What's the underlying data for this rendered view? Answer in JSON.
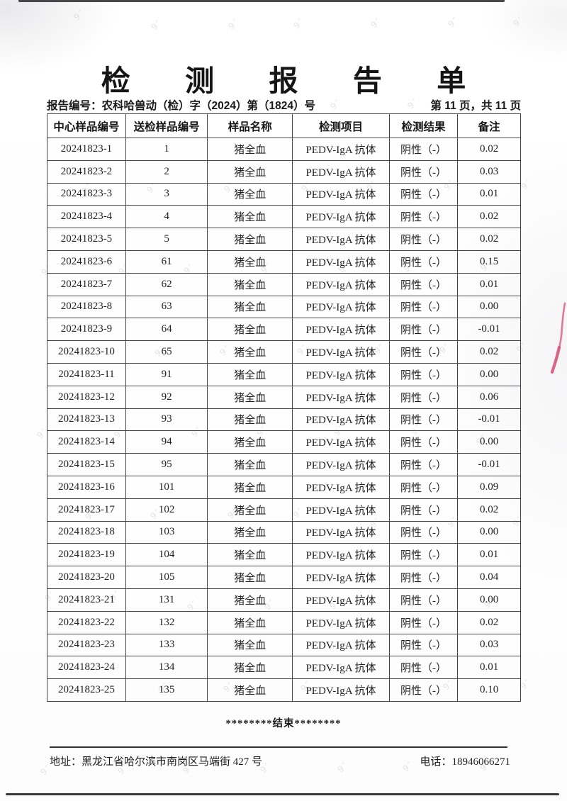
{
  "title": "检 测 报 告 单",
  "meta": {
    "report_no": "报告编号：农科哈兽动（检）字（2024）第（1824）号",
    "page_info": "第 11 页，共 11 页"
  },
  "table": {
    "headers": [
      "中心样品编号",
      "送检样品编号",
      "样品名称",
      "检测项目",
      "检测结果",
      "备注"
    ],
    "rows": [
      [
        "20241823-1",
        "1",
        "猪全血",
        "PEDV-IgA 抗体",
        "阴性（-）",
        "0.02"
      ],
      [
        "20241823-2",
        "2",
        "猪全血",
        "PEDV-IgA 抗体",
        "阴性（-）",
        "0.03"
      ],
      [
        "20241823-3",
        "3",
        "猪全血",
        "PEDV-IgA 抗体",
        "阴性（-）",
        "0.01"
      ],
      [
        "20241823-4",
        "4",
        "猪全血",
        "PEDV-IgA 抗体",
        "阴性（-）",
        "0.02"
      ],
      [
        "20241823-5",
        "5",
        "猪全血",
        "PEDV-IgA 抗体",
        "阴性（-）",
        "0.02"
      ],
      [
        "20241823-6",
        "61",
        "猪全血",
        "PEDV-IgA 抗体",
        "阴性（-）",
        "0.15"
      ],
      [
        "20241823-7",
        "62",
        "猪全血",
        "PEDV-IgA 抗体",
        "阴性（-）",
        "0.01"
      ],
      [
        "20241823-8",
        "63",
        "猪全血",
        "PEDV-IgA 抗体",
        "阴性（-）",
        "0.00"
      ],
      [
        "20241823-9",
        "64",
        "猪全血",
        "PEDV-IgA 抗体",
        "阴性（-）",
        "-0.01"
      ],
      [
        "20241823-10",
        "65",
        "猪全血",
        "PEDV-IgA 抗体",
        "阴性（-）",
        "0.02"
      ],
      [
        "20241823-11",
        "91",
        "猪全血",
        "PEDV-IgA 抗体",
        "阴性（-）",
        "0.00"
      ],
      [
        "20241823-12",
        "92",
        "猪全血",
        "PEDV-IgA 抗体",
        "阴性（-）",
        "0.06"
      ],
      [
        "20241823-13",
        "93",
        "猪全血",
        "PEDV-IgA 抗体",
        "阴性（-）",
        "-0.01"
      ],
      [
        "20241823-14",
        "94",
        "猪全血",
        "PEDV-IgA 抗体",
        "阴性（-）",
        "0.00"
      ],
      [
        "20241823-15",
        "95",
        "猪全血",
        "PEDV-IgA 抗体",
        "阴性（-）",
        "-0.01"
      ],
      [
        "20241823-16",
        "101",
        "猪全血",
        "PEDV-IgA 抗体",
        "阴性（-）",
        "0.09"
      ],
      [
        "20241823-17",
        "102",
        "猪全血",
        "PEDV-IgA 抗体",
        "阴性（-）",
        "0.02"
      ],
      [
        "20241823-18",
        "103",
        "猪全血",
        "PEDV-IgA 抗体",
        "阴性（-）",
        "0.00"
      ],
      [
        "20241823-19",
        "104",
        "猪全血",
        "PEDV-IgA 抗体",
        "阴性（-）",
        "0.01"
      ],
      [
        "20241823-20",
        "105",
        "猪全血",
        "PEDV-IgA 抗体",
        "阴性（-）",
        "0.04"
      ],
      [
        "20241823-21",
        "131",
        "猪全血",
        "PEDV-IgA 抗体",
        "阴性（-）",
        "0.00"
      ],
      [
        "20241823-22",
        "132",
        "猪全血",
        "PEDV-IgA 抗体",
        "阴性（-）",
        "0.02"
      ],
      [
        "20241823-23",
        "133",
        "猪全血",
        "PEDV-IgA 抗体",
        "阴性（-）",
        "0.03"
      ],
      [
        "20241823-24",
        "134",
        "猪全血",
        "PEDV-IgA 抗体",
        "阴性（-）",
        "0.01"
      ],
      [
        "20241823-25",
        "135",
        "猪全血",
        "PEDV-IgA 抗体",
        "阴性（-）",
        "0.10"
      ]
    ]
  },
  "end_marker": "********结束********",
  "footer": {
    "address": "地址：黑龙江省哈尔滨市南岗区马端街 427 号",
    "phone": "电话：18946066271"
  },
  "decor": {
    "watermark_glyph": "9″",
    "stamp_red": "#d85177",
    "border_color": "#454548"
  }
}
